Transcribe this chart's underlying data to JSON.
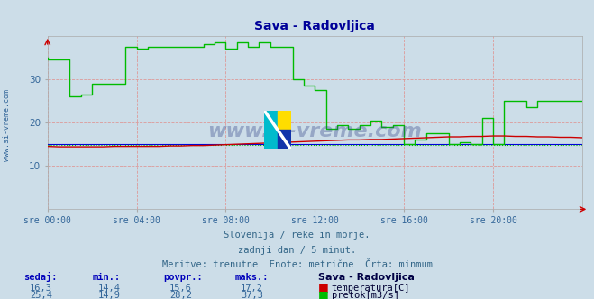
{
  "title": "Sava - Radovljica",
  "bg_color": "#ccdde8",
  "plot_bg_color": "#ccdde8",
  "title_color": "#000099",
  "xlabel_color": "#336699",
  "xtick_labels": [
    "sre 00:00",
    "sre 04:00",
    "sre 08:00",
    "sre 12:00",
    "sre 16:00",
    "sre 20:00"
  ],
  "xtick_positions": [
    0,
    4,
    8,
    12,
    16,
    20
  ],
  "ylim": [
    0,
    40
  ],
  "xlim": [
    0,
    24
  ],
  "yticks": [
    10,
    20,
    30
  ],
  "footer_line1": "Slovenija / reke in morje.",
  "footer_line2": "zadnji dan / 5 minut.",
  "footer_line3": "Meritve: trenutne  Enote: metrične  Črta: minmum",
  "watermark": "www.si-vreme.com",
  "temp_color": "#cc0000",
  "flow_color": "#00bb00",
  "blue_line_color": "#0000dd",
  "green_dot_y": 14.9,
  "temp_data_x": [
    0.0,
    0.5,
    1.0,
    1.5,
    2.0,
    2.5,
    3.0,
    3.5,
    4.0,
    4.5,
    5.0,
    5.5,
    6.0,
    6.5,
    7.0,
    7.5,
    8.0,
    8.5,
    9.0,
    9.5,
    10.0,
    10.5,
    11.0,
    11.5,
    12.0,
    12.5,
    13.0,
    13.5,
    14.0,
    14.5,
    15.0,
    15.5,
    16.0,
    16.5,
    17.0,
    17.5,
    18.0,
    18.5,
    19.0,
    19.5,
    20.0,
    20.5,
    21.0,
    21.5,
    22.0,
    22.5,
    23.0,
    23.5,
    24.0
  ],
  "temp_data_y": [
    14.5,
    14.4,
    14.4,
    14.4,
    14.4,
    14.4,
    14.5,
    14.5,
    14.5,
    14.5,
    14.5,
    14.6,
    14.6,
    14.7,
    14.7,
    14.8,
    14.9,
    15.0,
    15.1,
    15.2,
    15.3,
    15.4,
    15.5,
    15.6,
    15.7,
    15.8,
    15.9,
    16.0,
    16.0,
    16.1,
    16.1,
    16.2,
    16.3,
    16.4,
    16.5,
    16.6,
    16.7,
    16.7,
    16.8,
    16.8,
    16.9,
    16.9,
    16.8,
    16.8,
    16.7,
    16.7,
    16.6,
    16.6,
    16.5
  ],
  "flow_data_x": [
    0.0,
    0.0,
    1.0,
    1.0,
    1.5,
    1.5,
    2.0,
    2.0,
    3.5,
    3.5,
    4.0,
    4.0,
    4.5,
    4.5,
    7.0,
    7.0,
    7.5,
    7.5,
    8.0,
    8.0,
    8.5,
    8.5,
    9.0,
    9.0,
    9.5,
    9.5,
    10.0,
    10.0,
    11.0,
    11.0,
    11.5,
    11.5,
    12.0,
    12.0,
    12.5,
    12.5,
    13.0,
    13.0,
    13.5,
    13.5,
    14.0,
    14.0,
    14.5,
    14.5,
    15.0,
    15.0,
    15.5,
    15.5,
    16.0,
    16.0,
    16.5,
    16.5,
    17.0,
    17.0,
    18.0,
    18.0,
    18.5,
    18.5,
    19.0,
    19.0,
    19.5,
    19.5,
    20.0,
    20.0,
    20.5,
    20.5,
    21.5,
    21.5,
    22.0,
    22.0,
    23.0,
    23.0,
    24.0
  ],
  "flow_data_y": [
    35.0,
    34.5,
    34.5,
    26.0,
    26.0,
    26.5,
    26.5,
    29.0,
    29.0,
    37.5,
    37.5,
    37.0,
    37.0,
    37.5,
    37.5,
    38.0,
    38.0,
    38.5,
    38.5,
    37.0,
    37.0,
    38.5,
    38.5,
    37.5,
    37.5,
    38.5,
    38.5,
    37.5,
    37.5,
    30.0,
    30.0,
    28.5,
    28.5,
    27.5,
    27.5,
    18.5,
    18.5,
    19.5,
    19.5,
    18.5,
    18.5,
    19.5,
    19.5,
    20.5,
    20.5,
    19.0,
    19.0,
    19.5,
    19.5,
    15.0,
    15.0,
    16.0,
    16.0,
    17.5,
    17.5,
    15.0,
    15.0,
    15.5,
    15.5,
    15.0,
    15.0,
    21.0,
    21.0,
    15.0,
    15.0,
    25.0,
    25.0,
    23.5,
    23.5,
    25.0,
    25.0,
    25.0,
    25.0
  ],
  "blue_line_y": 15.0,
  "legend_items": [
    {
      "label": "temperatura[C]",
      "color": "#cc0000"
    },
    {
      "label": "pretok[m3/s]",
      "color": "#00bb00"
    }
  ],
  "stats_headers": [
    "sedaj:",
    "min.:",
    "povpr.:",
    "maks.:"
  ],
  "stats_temp": [
    "16,3",
    "14,4",
    "15,6",
    "17,2"
  ],
  "stats_flow": [
    "25,4",
    "14,9",
    "28,2",
    "37,3"
  ],
  "station_label": "Sava - Radovljica",
  "left_label": "www.si-vreme.com"
}
